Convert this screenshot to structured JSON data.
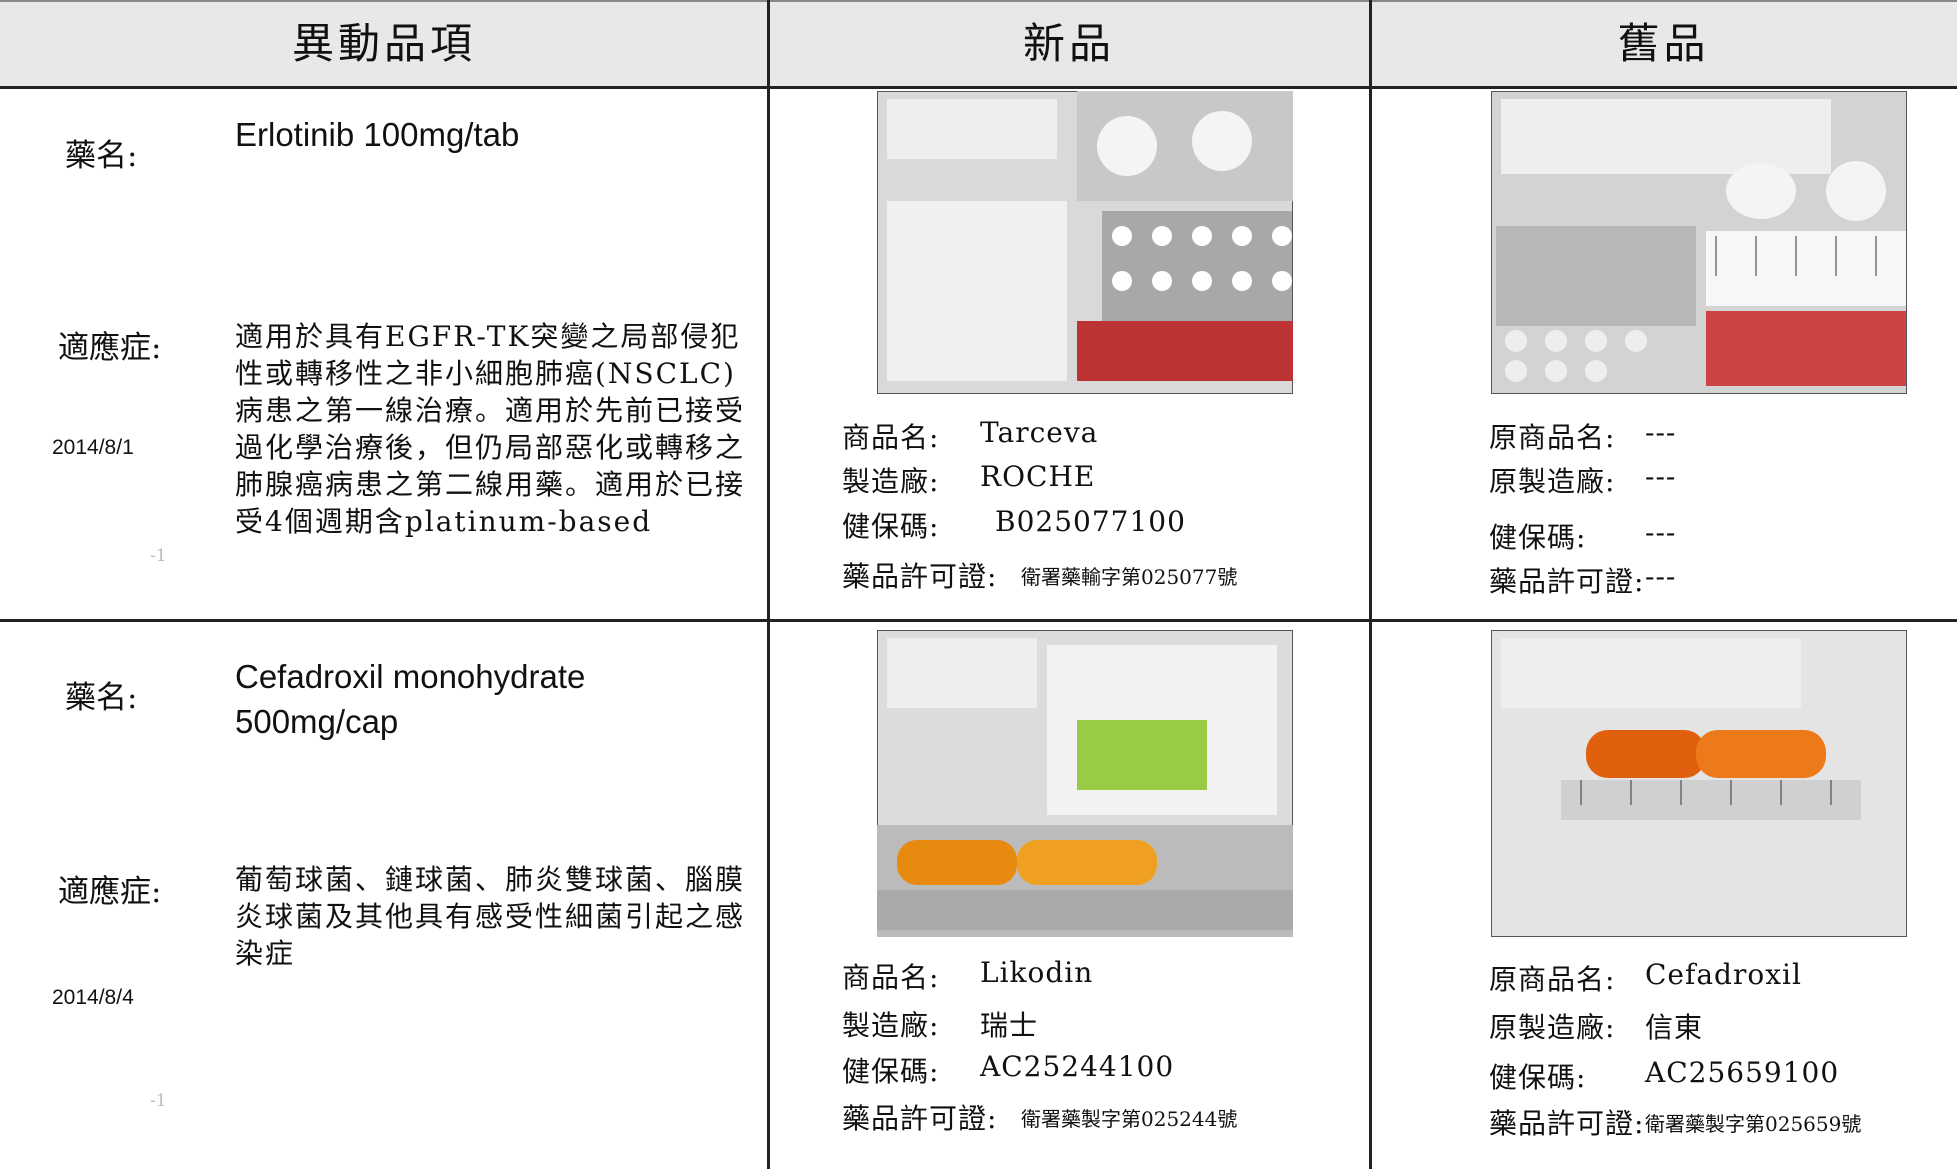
{
  "header": [
    "異動品項",
    "新品",
    "舊品"
  ],
  "rows": [
    {
      "name_label": "藥名:",
      "name": "Erlotinib 100mg/tab",
      "indication_label": "適應症:",
      "indication": "適用於具有EGFR-TK突變之局部侵犯性或轉移性之非小細胞肺癌(NSCLC)病患之第一線治療。適用於先前已接受過化學治療後，但仍局部惡化或轉移之肺腺癌病患之第二線用藥。適用於已接受4個週期含platinum-based",
      "date": "2014/8/1",
      "note": "-1",
      "new": {
        "fields": [
          {
            "label": "商品名:",
            "value": "Tarceva"
          },
          {
            "label": "製造廠:",
            "value": "ROCHE"
          },
          {
            "label": "健保碼:",
            "value": "B025077100"
          },
          {
            "label": "藥品許可證:",
            "value": "衛署藥輸字第025077號"
          }
        ]
      },
      "old": {
        "fields": [
          {
            "label": "原商品名:",
            "value": "---"
          },
          {
            "label": "原製造廠:",
            "value": "---"
          },
          {
            "label": "健保碼:",
            "value": "---"
          },
          {
            "label": "藥品許可證:",
            "value": "---"
          }
        ]
      }
    },
    {
      "name_label": "藥名:",
      "name": "Cefadroxil monohydrate 500mg/cap",
      "indication_label": "適應症:",
      "indication": "葡萄球菌、鏈球菌、肺炎雙球菌、腦膜炎球菌及其他具有感受性細菌引起之感染症",
      "date": "2014/8/4",
      "note": "-1",
      "new": {
        "fields": [
          {
            "label": "商品名:",
            "value": "Likodin"
          },
          {
            "label": "製造廠:",
            "value": "瑞士"
          },
          {
            "label": "健保碼:",
            "value": "AC25244100"
          },
          {
            "label": "藥品許可證:",
            "value": "衛署藥製字第025244號"
          }
        ]
      },
      "old": {
        "fields": [
          {
            "label": "原商品名:",
            "value": "Cefadroxil"
          },
          {
            "label": "原製造廠:",
            "value": "信東"
          },
          {
            "label": "健保碼:",
            "value": "AC25659100"
          },
          {
            "label": "藥品許可證:",
            "value": "衛署藥製字第025659號"
          }
        ]
      }
    }
  ]
}
